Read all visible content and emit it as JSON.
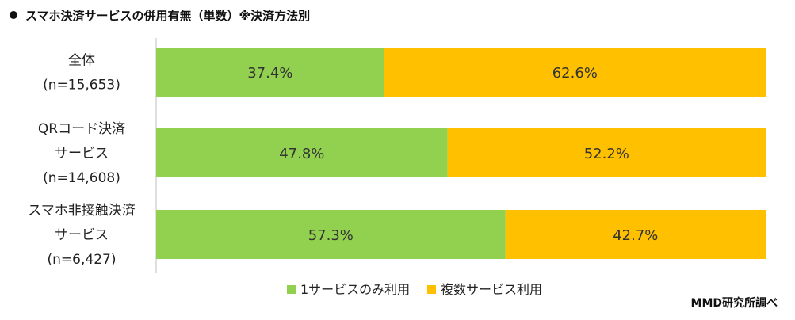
{
  "title": "スマホ決済サービスの併用有無（単数）※決済方法別",
  "source": "MMD研究所調べ",
  "colors": {
    "single": "#92d050",
    "multiple": "#ffc000",
    "axis": "#bfbfbf"
  },
  "chart_data": {
    "type": "bar",
    "orientation": "horizontal",
    "stacked": true,
    "title": "スマホ決済サービスの併用有無（単数）※決済方法別",
    "categories": [
      [
        "全体",
        "(n=15,653)"
      ],
      [
        "QRコード決済",
        "サービス",
        "(n=14,608)"
      ],
      [
        "スマホ非接触決済",
        "サービス",
        "(n=6,427)"
      ]
    ],
    "series": [
      {
        "name": "1サービスのみ利用",
        "values": [
          37.4,
          47.8,
          57.3
        ],
        "labels": [
          "37.4%",
          "47.8%",
          "57.3%"
        ]
      },
      {
        "name": "複数サービス利用",
        "values": [
          62.6,
          52.2,
          42.7
        ],
        "labels": [
          "62.6%",
          "52.2%",
          "42.7%"
        ]
      }
    ],
    "xlim": [
      0,
      100
    ],
    "legend_position": "bottom"
  }
}
